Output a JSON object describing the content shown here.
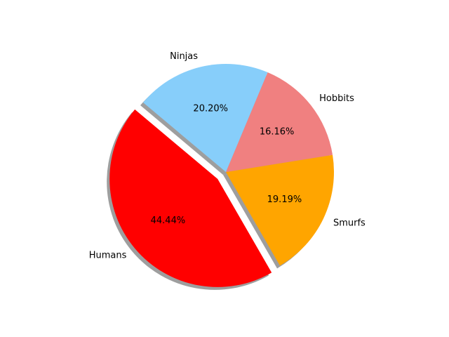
{
  "chart_data": {
    "type": "pie",
    "slices": [
      {
        "label": "Humans",
        "value": 44.44,
        "pct_text": "44.44%",
        "color": "#ff0000",
        "exploded": true
      },
      {
        "label": "Smurfs",
        "value": 19.19,
        "pct_text": "19.19%",
        "color": "#ffa500",
        "exploded": false
      },
      {
        "label": "Hobbits",
        "value": 16.16,
        "pct_text": "16.16%",
        "color": "#f08080",
        "exploded": false
      },
      {
        "label": "Ninjas",
        "value": 20.2,
        "pct_text": "20.20%",
        "color": "#87cefa",
        "exploded": false
      }
    ],
    "start_angle_deg": 140,
    "direction": "counterclockwise",
    "shadow": true,
    "legend": "none"
  }
}
